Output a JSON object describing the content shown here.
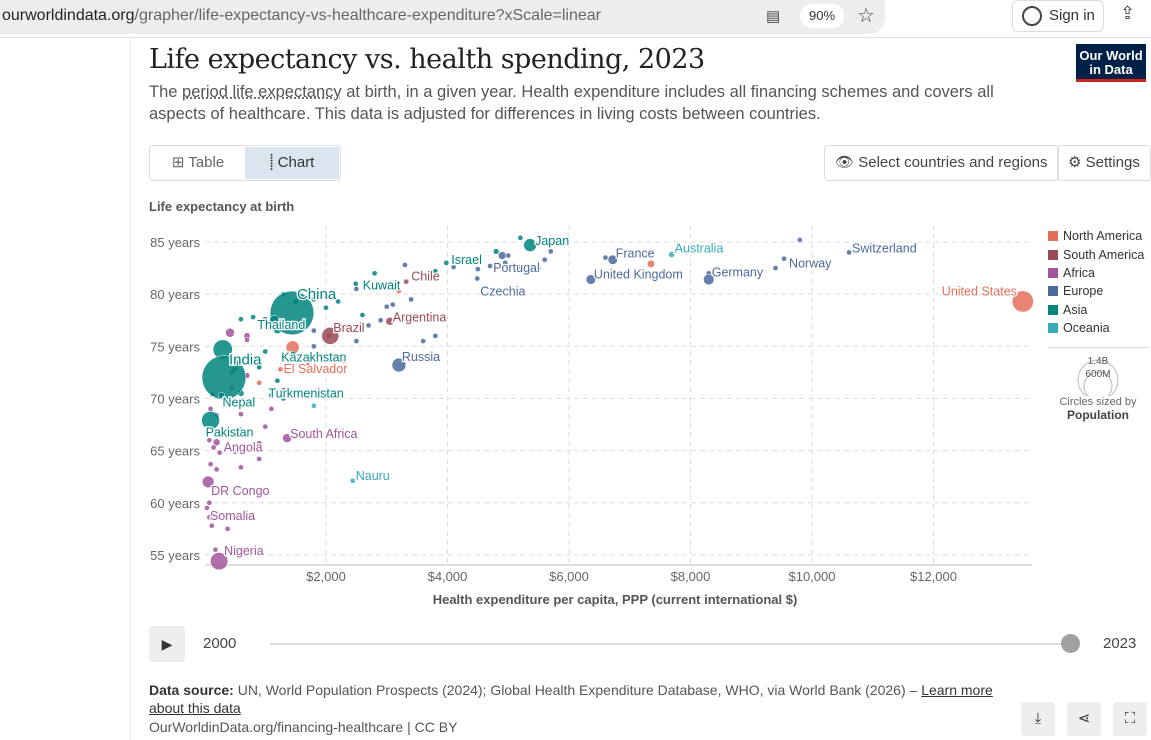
{
  "browser": {
    "url_domain": "ourworldindata.org",
    "url_path": "/grapher/life-expectancy-vs-healthcare-expenditure?xScale=linear",
    "zoom": "90%",
    "sign_in": "Sign in"
  },
  "header": {
    "title": "Life expectancy vs. health spending, 2023",
    "subtitle_pre": "The ",
    "subtitle_link": "period life expectancy",
    "subtitle_post": " at birth, in a given year. Health expenditure includes all financing schemes and covers all aspects of healthcare. This data is adjusted for differences in living costs between countries.",
    "logo": "Our World in Data"
  },
  "controls": {
    "tab_table": "Table",
    "tab_chart": "Chart",
    "select_countries": "Select countries and regions",
    "settings": "Settings"
  },
  "colors": {
    "North America": "#E56E5A",
    "South America": "#9A4A55",
    "Africa": "#A2559C",
    "Europe": "#4C6A9C",
    "Asia": "#00847E",
    "Oceania": "#38AABA"
  },
  "chart_data": {
    "type": "scatter",
    "title": "Life expectancy vs. health spending, 2023",
    "xlabel": "Health expenditure per capita, PPP (current international $)",
    "ylabel": "Life expectancy at birth",
    "xlim": [
      0,
      13800
    ],
    "ylim": [
      54,
      86
    ],
    "x_ticks": [
      2000,
      4000,
      6000,
      8000,
      10000,
      12000
    ],
    "x_tick_labels": [
      "$2,000",
      "$4,000",
      "$6,000",
      "$8,000",
      "$10,000",
      "$12,000"
    ],
    "y_ticks": [
      55,
      60,
      65,
      70,
      75,
      80,
      85
    ],
    "y_tick_labels": [
      "55 years",
      "60 years",
      "65 years",
      "70 years",
      "75 years",
      "80 years",
      "85 years"
    ],
    "grid": true,
    "legend": {
      "position": "right",
      "entries": [
        "North America",
        "South America",
        "Africa",
        "Europe",
        "Asia",
        "Oceania"
      ]
    },
    "size_legend": {
      "values": [
        "1.4B",
        "600M"
      ],
      "caption": "Circles sized by",
      "variable": "Population"
    },
    "labeled_points": [
      {
        "name": "United States",
        "x": 13470,
        "y": 79.3,
        "region": "North America",
        "pop": 335
      },
      {
        "name": "Switzerland",
        "x": 10610,
        "y": 84.0,
        "region": "Europe",
        "pop": 9
      },
      {
        "name": "Norway",
        "x": 9540,
        "y": 83.4,
        "region": "Europe",
        "pop": 5
      },
      {
        "name": "Germany",
        "x": 8300,
        "y": 81.4,
        "region": "Europe",
        "pop": 84
      },
      {
        "name": "United Kingdom",
        "x": 6360,
        "y": 81.4,
        "region": "Europe",
        "pop": 68
      },
      {
        "name": "France",
        "x": 6720,
        "y": 83.3,
        "region": "Europe",
        "pop": 66
      },
      {
        "name": "Australia",
        "x": 7690,
        "y": 83.8,
        "region": "Oceania",
        "pop": 26
      },
      {
        "name": "Japan",
        "x": 5360,
        "y": 84.7,
        "region": "Asia",
        "pop": 124
      },
      {
        "name": "Portugal",
        "x": 4950,
        "y": 83.0,
        "region": "Europe",
        "pop": 10
      },
      {
        "name": "Israel",
        "x": 3980,
        "y": 83.0,
        "region": "Asia",
        "pop": 9
      },
      {
        "name": "Czechia",
        "x": 4490,
        "y": 81.5,
        "region": "Europe",
        "pop": 11
      },
      {
        "name": "Chile",
        "x": 3320,
        "y": 81.2,
        "region": "South America",
        "pop": 20
      },
      {
        "name": "Kuwait",
        "x": 2490,
        "y": 81.0,
        "region": "Asia",
        "pop": 4
      },
      {
        "name": "China",
        "x": 1440,
        "y": 78.2,
        "region": "Asia",
        "pop": 1420
      },
      {
        "name": "Thailand",
        "x": 1150,
        "y": 77.5,
        "region": "Asia",
        "pop": 72
      },
      {
        "name": "Brazil",
        "x": 2070,
        "y": 76.0,
        "region": "South America",
        "pop": 215
      },
      {
        "name": "Argentina",
        "x": 3050,
        "y": 77.4,
        "region": "South America",
        "pop": 46
      },
      {
        "name": "Kazakhstan",
        "x": 1460,
        "y": 74.3,
        "region": "Asia",
        "pop": 20
      },
      {
        "name": "Russia",
        "x": 3200,
        "y": 73.2,
        "region": "Europe",
        "pop": 144
      },
      {
        "name": "India",
        "x": 320,
        "y": 72.0,
        "region": "Asia",
        "pop": 1430
      },
      {
        "name": "El Salvador",
        "x": 1250,
        "y": 72.8,
        "region": "North America",
        "pop": 6
      },
      {
        "name": "Nepal",
        "x": 280,
        "y": 70.3,
        "region": "Asia",
        "pop": 30
      },
      {
        "name": "Turkmenistan",
        "x": 1300,
        "y": 70.0,
        "region": "Asia",
        "pop": 7
      },
      {
        "name": "Pakistan",
        "x": 100,
        "y": 67.9,
        "region": "Asia",
        "pop": 240
      },
      {
        "name": "South Africa",
        "x": 1360,
        "y": 66.2,
        "region": "Africa",
        "pop": 60
      },
      {
        "name": "Angola",
        "x": 200,
        "y": 65.8,
        "region": "Africa",
        "pop": 36
      },
      {
        "name": "Nauru",
        "x": 2440,
        "y": 62.1,
        "region": "Oceania",
        "pop": 1
      },
      {
        "name": "DR Congo",
        "x": 60,
        "y": 62.0,
        "region": "Africa",
        "pop": 102
      },
      {
        "name": "Somalia",
        "x": 40,
        "y": 59.5,
        "region": "Africa",
        "pop": 18
      },
      {
        "name": "Nigeria",
        "x": 240,
        "y": 54.4,
        "region": "Africa",
        "pop": 225
      }
    ],
    "other_points": [
      [
        1450,
        74.9,
        "North America",
        128
      ],
      [
        300,
        74.7,
        "Asia",
        277
      ],
      [
        2050,
        76.0,
        "South America",
        20
      ],
      [
        420,
        76.3,
        "Africa",
        60
      ],
      [
        600,
        77.6,
        "Asia",
        10
      ],
      [
        800,
        77.8,
        "Asia",
        5
      ],
      [
        1000,
        77.6,
        "Asia",
        5
      ],
      [
        1100,
        77.0,
        "South America",
        10
      ],
      [
        1300,
        76.8,
        "Europe",
        5
      ],
      [
        700,
        76.0,
        "Africa",
        30
      ],
      [
        700,
        75.6,
        "Africa",
        10
      ],
      [
        1200,
        76.6,
        "Asia",
        50
      ],
      [
        1800,
        76.5,
        "Europe",
        5
      ],
      [
        2300,
        76.9,
        "North America",
        5
      ],
      [
        1800,
        75.0,
        "Europe",
        5
      ],
      [
        2500,
        75.5,
        "Europe",
        5
      ],
      [
        2700,
        77.0,
        "Europe",
        5
      ],
      [
        2900,
        77.5,
        "Europe",
        8
      ],
      [
        3100,
        79.0,
        "Europe",
        5
      ],
      [
        3400,
        79.5,
        "Europe",
        5
      ],
      [
        3000,
        78.8,
        "Europe",
        5
      ],
      [
        2200,
        79.3,
        "Asia",
        5
      ],
      [
        1800,
        79.5,
        "Asia",
        5
      ],
      [
        2500,
        80.5,
        "Europe",
        5
      ],
      [
        3200,
        80.3,
        "North America",
        5
      ],
      [
        2800,
        82.0,
        "Asia",
        5
      ],
      [
        3300,
        82.8,
        "Europe",
        5
      ],
      [
        3800,
        82.2,
        "Asia",
        5
      ],
      [
        4100,
        82.6,
        "Europe",
        5
      ],
      [
        4500,
        82.4,
        "Europe",
        5
      ],
      [
        4700,
        82.7,
        "Europe",
        5
      ],
      [
        4800,
        84.1,
        "Asia",
        25
      ],
      [
        4900,
        83.7,
        "Europe",
        45
      ],
      [
        5000,
        83.7,
        "Europe",
        10
      ],
      [
        5200,
        85.4,
        "Asia",
        5
      ],
      [
        5500,
        82.5,
        "Oceania",
        5
      ],
      [
        5600,
        83.3,
        "Europe",
        5
      ],
      [
        5200,
        82.6,
        "Europe",
        5
      ],
      [
        6600,
        83.5,
        "Europe",
        5
      ],
      [
        7350,
        82.9,
        "North America",
        40
      ],
      [
        8300,
        82.0,
        "Europe",
        5
      ],
      [
        9800,
        85.2,
        "Europe",
        5
      ],
      [
        9400,
        82.5,
        "Europe",
        5
      ],
      [
        5700,
        84.1,
        "Europe",
        5
      ],
      [
        3600,
        75.5,
        "Europe",
        5
      ],
      [
        3800,
        76.0,
        "Europe",
        5
      ],
      [
        1000,
        74.5,
        "Asia",
        5
      ],
      [
        1300,
        73.8,
        "Asia",
        5
      ],
      [
        1700,
        73.2,
        "North America",
        5
      ],
      [
        2300,
        73.6,
        "North America",
        5
      ],
      [
        900,
        73.0,
        "Asia",
        5
      ],
      [
        700,
        72.2,
        "Africa",
        25
      ],
      [
        500,
        72.8,
        "Asia",
        8
      ],
      [
        900,
        71.5,
        "North America",
        5
      ],
      [
        1200,
        71.7,
        "Asia",
        5
      ],
      [
        600,
        70.5,
        "Asia",
        30
      ],
      [
        800,
        69.8,
        "North America",
        5
      ],
      [
        1100,
        69.0,
        "Africa",
        5
      ],
      [
        1800,
        69.3,
        "Oceania",
        5
      ],
      [
        400,
        69.5,
        "Africa",
        5
      ],
      [
        100,
        69.0,
        "Africa",
        5
      ],
      [
        200,
        68.4,
        "Africa",
        5
      ],
      [
        600,
        67.0,
        "Oceania",
        5
      ],
      [
        300,
        66.5,
        "Asia",
        5
      ],
      [
        80,
        66.0,
        "Africa",
        10
      ],
      [
        150,
        65.3,
        "Africa",
        5
      ],
      [
        250,
        64.8,
        "Africa",
        8
      ],
      [
        500,
        64.9,
        "Africa",
        5
      ],
      [
        900,
        65.7,
        "Africa",
        5
      ],
      [
        1000,
        67.3,
        "Africa",
        5
      ],
      [
        100,
        63.7,
        "Africa",
        5
      ],
      [
        200,
        63.2,
        "Africa",
        5
      ],
      [
        600,
        63.4,
        "Africa",
        5
      ],
      [
        900,
        64.2,
        "Africa",
        5
      ],
      [
        150,
        61.5,
        "Africa",
        5
      ],
      [
        250,
        61.0,
        "Africa",
        5
      ],
      [
        80,
        60.0,
        "Africa",
        5
      ],
      [
        200,
        59.0,
        "Africa",
        5
      ],
      [
        80,
        58.6,
        "Africa",
        5
      ],
      [
        380,
        57.5,
        "Africa",
        5
      ],
      [
        120,
        57.8,
        "Africa",
        5
      ],
      [
        180,
        55.5,
        "Africa",
        5
      ],
      [
        450,
        71.0,
        "Africa",
        5
      ],
      [
        130,
        70.4,
        "Asia",
        5
      ],
      [
        1100,
        70.3,
        "Asia",
        5
      ],
      [
        1300,
        70.8,
        "South America",
        5
      ],
      [
        600,
        68.5,
        "Africa",
        5
      ],
      [
        700,
        66.7,
        "Asia",
        5
      ],
      [
        450,
        72.5,
        "South America",
        5
      ],
      [
        1600,
        77.2,
        "Asia",
        5
      ],
      [
        2000,
        78.7,
        "Asia",
        5
      ],
      [
        2600,
        78.0,
        "Asia",
        5
      ],
      [
        1500,
        79.3,
        "Asia",
        5
      ],
      [
        1300,
        80.0,
        "Asia",
        5
      ]
    ]
  },
  "timeline": {
    "start": "2000",
    "end": "2023",
    "position": 1.0
  },
  "footer": {
    "source_label": "Data source:",
    "source_text": " UN, World Population Prospects (2024); Global Health Expenditure Database, WHO, via World Bank (2026) – ",
    "learn_more": "Learn more about this data",
    "license": "OurWorldinData.org/financing-healthcare | CC BY"
  }
}
